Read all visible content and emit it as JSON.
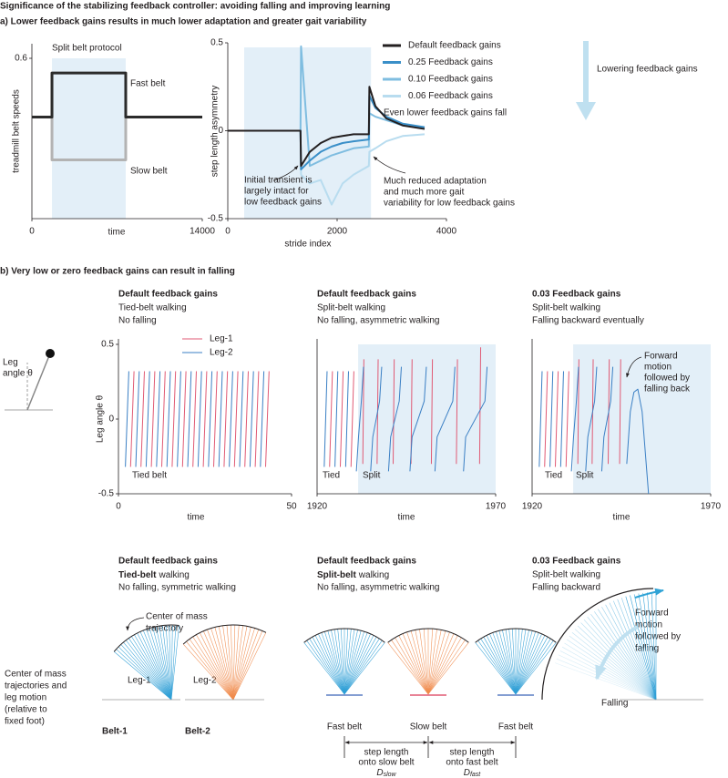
{
  "title": "Significance of the stabilizing feedback controller: avoiding falling and improving learning",
  "panel_a": {
    "heading": "a) Lower feedback gains results in much lower adaptation and greater gait variability",
    "arrow_label": "Lowering feedback gains"
  },
  "chart_data": [
    {
      "type": "line",
      "xlabel": "time",
      "ylabel": "treadmill belt speeds",
      "annotation": "Split belt protocol",
      "shaded": [
        1650,
        7710
      ],
      "xlim": [
        0,
        14000
      ],
      "xticks": [
        0,
        14000
      ],
      "ylim": [
        0,
        0.6
      ],
      "yticks": [
        0.6
      ],
      "series": [
        {
          "name": "Fast belt",
          "color": "#2b2b2b",
          "x": [
            0,
            1650,
            1650,
            7710,
            7710,
            14000
          ],
          "values": [
            0.38,
            0.38,
            0.545,
            0.545,
            0.38,
            0.38
          ]
        },
        {
          "name": "Slow belt",
          "color": "#b3b3b3",
          "x": [
            1650,
            1650,
            7710,
            7710
          ],
          "values": [
            0.38,
            0.22,
            0.22,
            0.38
          ]
        }
      ]
    },
    {
      "type": "line",
      "xlabel": "stride index",
      "ylabel": "step length asymmetry",
      "shaded": [
        300,
        2620
      ],
      "xlim": [
        0,
        4000
      ],
      "xticks": [
        0,
        2000,
        4000
      ],
      "ylim": [
        -0.5,
        0.5
      ],
      "yticks": [
        0.5,
        0,
        -0.5
      ],
      "note_fall": "Even lower feedback gains fall",
      "note_transient": [
        "Initial transient is",
        "largely intact for",
        "low feedback gains"
      ],
      "note_adapt": [
        "Much reduced adaptation",
        "and much more gait",
        "variability for low feedback gains"
      ],
      "series": [
        {
          "name": "Default feedback gains",
          "color": "#231f20",
          "x": [
            0,
            1330,
            1340,
            1500,
            1700,
            1900,
            2100,
            2300,
            2580,
            2590,
            2700,
            2900,
            3200,
            3600
          ],
          "values": [
            0,
            0,
            -0.2,
            -0.12,
            -0.07,
            -0.04,
            -0.03,
            -0.02,
            -0.02,
            0.25,
            0.14,
            0.07,
            0.03,
            0.01
          ]
        },
        {
          "name": "0.25 Feedback gains",
          "color": "#3a8fc8",
          "x": [
            0,
            1330,
            1340,
            1500,
            1700,
            1900,
            2100,
            2300,
            2580,
            2590,
            2700,
            2900,
            3200,
            3600
          ],
          "values": [
            0,
            0,
            -0.22,
            -0.17,
            -0.12,
            -0.09,
            -0.07,
            -0.06,
            -0.05,
            0.2,
            0.13,
            0.08,
            0.04,
            0.02
          ]
        },
        {
          "name": "0.10 Feedback gains",
          "color": "#7fbde0",
          "x": [
            0,
            1330,
            1340,
            1500,
            1700,
            1900,
            2100,
            2300,
            2580,
            2590,
            2700,
            2900,
            3200,
            3600
          ],
          "values": [
            0,
            0,
            0.48,
            -0.2,
            -0.17,
            -0.14,
            -0.12,
            -0.1,
            -0.09,
            0.1,
            0.08,
            0.06,
            0.03,
            0.02
          ]
        },
        {
          "name": "0.06 Feedback gains",
          "color": "#b8dcef",
          "x": [
            0,
            1330,
            1340,
            1500,
            1700,
            1900,
            2100,
            2300,
            2580,
            2590,
            2700,
            2900,
            3200,
            3600
          ],
          "values": [
            0,
            0,
            -0.25,
            -0.3,
            -0.28,
            -0.42,
            -0.3,
            -0.25,
            -0.2,
            -0.12,
            -0.1,
            -0.06,
            -0.03,
            -0.02
          ]
        }
      ]
    },
    {
      "type": "line",
      "xlabel": "time",
      "ylabel": "Leg angle θ",
      "region_labels": [
        "Tied belt"
      ],
      "xlim": [
        0,
        50
      ],
      "xticks": [
        0,
        50
      ],
      "ylim": [
        -0.5,
        0.5
      ],
      "yticks": [
        0.5,
        0,
        -0.5
      ],
      "series": [
        {
          "name": "Leg-1",
          "color": "#e05a74",
          "x": [
            3.5,
            4.5,
            4.5,
            6.5,
            7.5,
            7.5,
            9.5,
            10.5,
            10.5,
            12.5,
            13.5,
            13.5,
            15.5,
            16.5,
            16.5,
            18.5,
            19.5,
            19.5,
            21.5,
            22.5,
            22.5,
            24.5,
            25.5,
            25.5,
            27.5,
            28.5,
            28.5,
            30.5,
            31.5,
            31.5,
            33.5,
            34.5,
            34.5,
            36.5,
            37.5,
            37.5,
            39.5,
            40.5,
            40.5,
            42.5,
            43.5
          ],
          "values": [
            -0.32,
            0.32,
            null,
            -0.32,
            0.32,
            null,
            -0.32,
            0.32,
            null,
            -0.32,
            0.32,
            null,
            -0.32,
            0.32,
            null,
            -0.32,
            0.32,
            null,
            -0.32,
            0.32,
            null,
            -0.32,
            0.32,
            null,
            -0.32,
            0.32,
            null,
            -0.32,
            0.32,
            null,
            -0.32,
            0.32,
            null,
            -0.32,
            0.32,
            null,
            -0.32,
            0.32,
            null,
            -0.32,
            0.32
          ]
        },
        {
          "name": "Leg-2",
          "color": "#3a7fc4",
          "x": [
            2,
            3,
            3,
            5,
            6,
            6,
            8,
            9,
            9,
            11,
            12,
            12,
            14,
            15,
            15,
            17,
            18,
            18,
            20,
            21,
            21,
            23,
            24,
            24,
            26,
            27,
            27,
            29,
            30,
            30,
            32,
            33,
            33,
            35,
            36,
            36,
            38,
            39,
            39,
            41,
            42
          ],
          "values": [
            -0.32,
            0.32,
            null,
            -0.32,
            0.32,
            null,
            -0.32,
            0.32,
            null,
            -0.32,
            0.32,
            null,
            -0.32,
            0.32,
            null,
            -0.32,
            0.32,
            null,
            -0.32,
            0.32,
            null,
            -0.32,
            0.32,
            null,
            -0.32,
            0.32,
            null,
            -0.32,
            0.32,
            null,
            -0.32,
            0.32,
            null,
            -0.32,
            0.32,
            null,
            -0.32,
            0.32,
            null,
            -0.32,
            0.32
          ]
        }
      ]
    },
    {
      "type": "line",
      "xlabel": "time",
      "region_labels": [
        "Tied",
        "Split"
      ],
      "shaded": [
        1931.5,
        1970
      ],
      "xlim": [
        1920,
        1970
      ],
      "xticks": [
        1920,
        1970
      ],
      "ylim": [
        -0.5,
        0.5
      ],
      "series": [
        {
          "color": "#e05a74",
          "x": [
            1923.5,
            1924.3,
            1924.3,
            1926.5,
            1927.3,
            1927.3,
            1929.5,
            1930.3,
            1930.3,
            1932.8,
            1933.1,
            1933.1,
            1936.8,
            1937.1,
            1937.1,
            1941.3,
            1941.6,
            1941.6,
            1946.3,
            1946.6,
            1946.6,
            1952,
            1952.3,
            1952.3,
            1959,
            1959.3,
            1959.3,
            1965.5,
            1965.8
          ],
          "values": [
            -0.32,
            0.32,
            null,
            -0.32,
            0.32,
            null,
            -0.32,
            0.32,
            null,
            -0.3,
            0.4,
            null,
            -0.3,
            0.4,
            null,
            -0.3,
            0.4,
            null,
            -0.3,
            0.4,
            null,
            -0.3,
            0.4,
            null,
            -0.3,
            0.4,
            null,
            -0.3,
            0.48
          ]
        },
        {
          "color": "#3a7fc4",
          "x": [
            1922,
            1922.8,
            1922.8,
            1925,
            1925.8,
            1925.8,
            1928,
            1928.8,
            1928.8,
            1931,
            1931.6,
            1932.4,
            1933,
            1933,
            1935,
            1935.6,
            1937.5,
            1938.1,
            1938.1,
            1940,
            1940.6,
            1943,
            1943.6,
            1943.6,
            1946,
            1946.6,
            1950,
            1950.6,
            1950.6,
            1953,
            1953.6,
            1958,
            1958.6,
            1958.6,
            1961,
            1961.6,
            1967,
            1967.6
          ],
          "values": [
            -0.32,
            0.32,
            null,
            -0.32,
            0.32,
            null,
            -0.32,
            0.32,
            null,
            -0.35,
            -0.12,
            0.12,
            0.35,
            null,
            -0.35,
            -0.12,
            0.12,
            0.35,
            null,
            -0.35,
            -0.12,
            0.12,
            0.35,
            null,
            -0.35,
            -0.12,
            0.12,
            0.35,
            null,
            -0.35,
            -0.12,
            0.12,
            0.35,
            null,
            -0.35,
            -0.12,
            0.12,
            0.35
          ]
        }
      ]
    },
    {
      "type": "line",
      "xlabel": "time",
      "region_labels": [
        "Tied",
        "Split"
      ],
      "shaded": [
        1931.5,
        1970
      ],
      "xlim": [
        1920,
        1970
      ],
      "xticks": [
        1920,
        1970
      ],
      "ylim": [
        -0.5,
        0.5
      ],
      "annotation": [
        "Forward",
        "motion",
        "followed by",
        "falling back"
      ],
      "series": [
        {
          "color": "#e05a74",
          "x": [
            1923.5,
            1924.3,
            1924.3,
            1926.5,
            1927.3,
            1927.3,
            1929.5,
            1930.3,
            1930.3,
            1932.8,
            1933.1,
            1933.1,
            1936.8,
            1937.1,
            1937.1,
            1941.3,
            1941.6,
            1941.6,
            1944.5,
            1944.8
          ],
          "values": [
            -0.32,
            0.32,
            null,
            -0.32,
            0.32,
            null,
            -0.32,
            0.32,
            null,
            -0.3,
            0.4,
            null,
            -0.3,
            0.4,
            null,
            -0.3,
            0.4,
            null,
            -0.3,
            0.4
          ]
        },
        {
          "color": "#3a7fc4",
          "x": [
            1922,
            1922.8,
            1922.8,
            1925,
            1925.8,
            1925.8,
            1928,
            1928.8,
            1928.8,
            1931,
            1931.6,
            1932.4,
            1933,
            1933,
            1935,
            1935.6,
            1937.5,
            1938.1,
            1938.1,
            1939.5,
            1940.1,
            1942,
            1942.6,
            1942.6,
            1946.5,
            1947.5,
            1948.5,
            1949.6,
            1950.8,
            1952.6
          ],
          "values": [
            -0.32,
            0.32,
            null,
            -0.32,
            0.32,
            null,
            -0.32,
            0.32,
            null,
            -0.35,
            -0.12,
            0.12,
            0.35,
            null,
            -0.35,
            -0.12,
            0.12,
            0.35,
            null,
            -0.35,
            -0.12,
            0.12,
            0.35,
            null,
            -0.3,
            0.05,
            0.18,
            0.2,
            0.05,
            -0.5
          ]
        }
      ]
    }
  ],
  "panel_b": {
    "heading": "b) Very low or zero feedback gains can result in falling",
    "pendulum_label": [
      "Leg",
      "angle θ"
    ],
    "top_headers": [
      {
        "bold": "Default feedback gains",
        "lines": [
          "Tied-belt walking",
          "No falling"
        ]
      },
      {
        "bold": "Default feedback gains",
        "lines": [
          "Split-belt walking",
          "No falling, asymmetric walking"
        ]
      },
      {
        "bold": "0.03 Feedback gains",
        "lines": [
          "Split-belt walking",
          "Falling backward eventually"
        ]
      }
    ],
    "bottom_headers": [
      {
        "bold": "Default feedback gains",
        "mode_bold": "Tied-belt",
        "mode_rest": "walking",
        "line": "No falling, symmetric walking"
      },
      {
        "bold": "Default feedback gains",
        "mode_bold": "Split-belt",
        "mode_rest": "walking",
        "line": "No falling, asymmetric walking"
      },
      {
        "bold": "0.03 Feedback gains",
        "lines": [
          "Split-belt walking",
          "Falling backward"
        ]
      }
    ],
    "com_label": [
      "Center of mass",
      "trajectories and",
      "leg motion",
      "(relative to",
      "fixed foot)"
    ],
    "com_trajectory": [
      "Center of mass",
      "trajectory"
    ],
    "legs": [
      "Leg-1",
      "Leg-2"
    ],
    "belts": [
      "Belt-1",
      "Belt-2"
    ],
    "split_belts": [
      "Fast belt",
      "Slow belt",
      "Fast belt"
    ],
    "step_slow": {
      "lines": [
        "step length",
        "onto slow belt"
      ],
      "symbol": "D",
      "sub": "slow"
    },
    "step_fast": {
      "lines": [
        "step length",
        "onto fast belt"
      ],
      "symbol": "D",
      "sub": "fast"
    },
    "forward": [
      "Forward",
      "motion",
      "followed by",
      "falling"
    ],
    "falling": "Falling"
  }
}
